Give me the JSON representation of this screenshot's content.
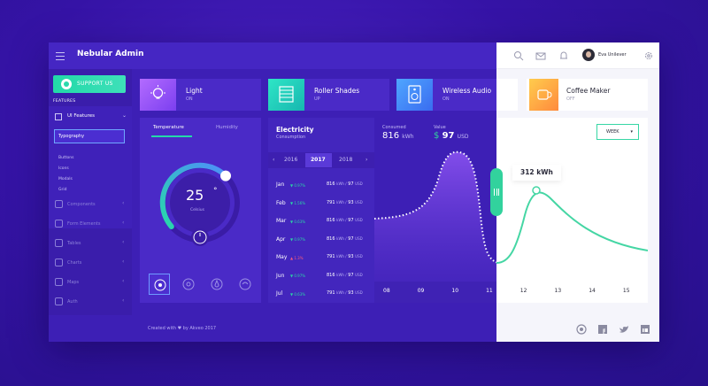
{
  "header": {
    "brand": "Nebular Admin",
    "user_name": "Eva Unilever"
  },
  "sidebar": {
    "support_label": "SUPPORT US",
    "features_title": "FEATURES",
    "ui_features": "UI Features",
    "selected": "Typography",
    "sub_items": [
      "Buttons",
      "Icons",
      "Modals",
      "Grid"
    ],
    "items": [
      "Components",
      "Form Elements",
      "Tables",
      "Charts",
      "Maps",
      "Auth"
    ]
  },
  "devices": [
    {
      "name": "Light",
      "state": "ON"
    },
    {
      "name": "Roller Shades",
      "state": "UP"
    },
    {
      "name": "Wireless Audio",
      "state": "ON"
    },
    {
      "name": "Coffee Maker",
      "state": "OFF"
    }
  ],
  "temperature": {
    "tab_temperature": "Temperature",
    "tab_humidity": "Humidity",
    "value": "25",
    "unit": "°",
    "caption": "Celsius",
    "level": 0.62
  },
  "electricity": {
    "title": "Electricity",
    "subtitle": "Consumption",
    "years": [
      "2016",
      "2017",
      "2018"
    ],
    "selected_year": "2017",
    "rows": [
      {
        "month": "Jan",
        "delta": "▼ 0.97%",
        "dir": "down",
        "kwh": "816",
        "cost": "97"
      },
      {
        "month": "Feb",
        "delta": "▼ 1.56%",
        "dir": "down",
        "kwh": "791",
        "cost": "93"
      },
      {
        "month": "Mar",
        "delta": "▼ 0.63%",
        "dir": "down",
        "kwh": "816",
        "cost": "97"
      },
      {
        "month": "Apr",
        "delta": "▼ 0.97%",
        "dir": "down",
        "kwh": "816",
        "cost": "97"
      },
      {
        "month": "May",
        "delta": "▲ 1.3%",
        "dir": "up",
        "kwh": "791",
        "cost": "93"
      },
      {
        "month": "Jun",
        "delta": "▼ 0.97%",
        "dir": "down",
        "kwh": "816",
        "cost": "97"
      },
      {
        "month": "Jul",
        "delta": "▼ 0.63%",
        "dir": "down",
        "kwh": "791",
        "cost": "93"
      }
    ],
    "row_unit": "kWh /",
    "row_currency": "USD",
    "consumed_label": "Consumed",
    "consumed_value": "816",
    "consumed_unit": "kWh",
    "value_label": "Value",
    "value_currency": "$",
    "value_value": "97",
    "value_unit": "USD",
    "period": "WEEK",
    "tooltip": "312 kWh",
    "x_ticks": [
      "08",
      "09",
      "10",
      "11",
      "12",
      "13",
      "14",
      "15"
    ]
  },
  "footer": {
    "text": "Created with ♥ by Akveo 2017"
  },
  "colors": {
    "accent": "#32d29d",
    "dark_bg": "#3d1fb5",
    "light_bg": "#f5f5fb"
  }
}
